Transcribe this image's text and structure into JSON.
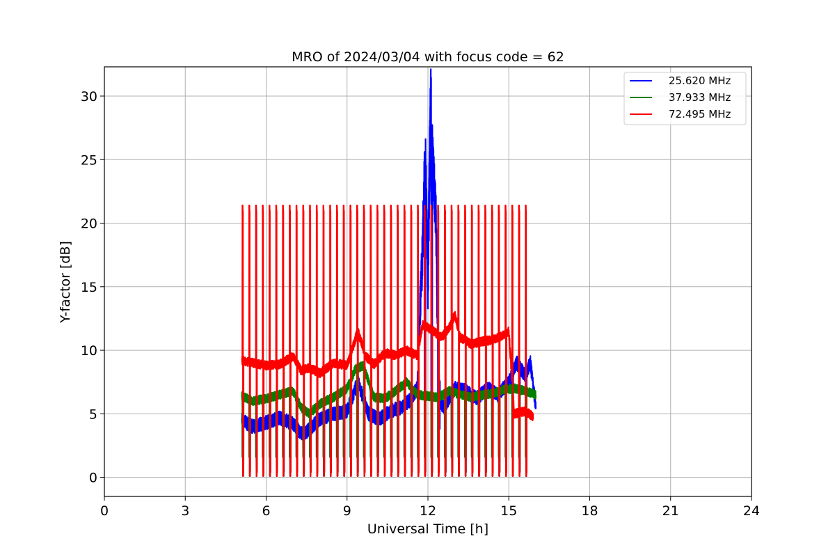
{
  "chart_data": {
    "type": "line",
    "title": "MRO of 2024/03/04 with focus code = 62",
    "xlabel": "Universal Time [h]",
    "ylabel": "Y-factor [dB]",
    "xlim": [
      0,
      24
    ],
    "ylim": [
      -1.5,
      32.3
    ],
    "xticks": [
      0,
      3,
      6,
      9,
      12,
      15,
      18,
      21,
      24
    ],
    "yticks": [
      0,
      5,
      10,
      15,
      20,
      25,
      30
    ],
    "grid": true,
    "legend_position": "top-right",
    "calibration": {
      "first_hour": 5.12,
      "interval_h": 0.25,
      "count": 43,
      "note": "periodic calibration spikes"
    },
    "series": [
      {
        "name": "25.620 MHz",
        "color": "#0000ff",
        "x": [
          5.1,
          5.5,
          6.0,
          6.5,
          7.0,
          7.3,
          7.5,
          8.0,
          8.5,
          9.0,
          9.4,
          9.8,
          10.2,
          10.6,
          11.0,
          11.3,
          11.6,
          11.8,
          11.9,
          12.0,
          12.1,
          12.2,
          12.3,
          12.4,
          12.6,
          13.0,
          13.4,
          13.8,
          14.2,
          14.6,
          15.0,
          15.3,
          15.6,
          15.8,
          16.0
        ],
        "y": [
          4.5,
          4.0,
          4.3,
          4.7,
          4.2,
          3.5,
          3.6,
          4.6,
          5.0,
          5.2,
          7.5,
          5.0,
          4.6,
          5.2,
          5.5,
          6.0,
          7.0,
          18.0,
          26.0,
          15.0,
          30.5,
          24.0,
          20.0,
          6.0,
          5.5,
          7.0,
          6.8,
          6.2,
          7.0,
          6.5,
          7.5,
          9.0,
          8.0,
          9.0,
          5.5
        ]
      },
      {
        "name": "37.933 MHz",
        "color": "#008000",
        "x": [
          5.1,
          5.5,
          6.0,
          6.5,
          7.0,
          7.3,
          7.6,
          8.0,
          8.5,
          9.0,
          9.3,
          9.6,
          10.0,
          10.4,
          10.8,
          11.2,
          11.6,
          12.0,
          12.4,
          12.8,
          13.2,
          13.6,
          14.0,
          14.4,
          14.8,
          15.2,
          15.6,
          16.0
        ],
        "y": [
          6.4,
          6.0,
          6.2,
          6.5,
          6.8,
          5.5,
          5.0,
          5.8,
          6.3,
          7.0,
          8.5,
          8.8,
          6.3,
          6.2,
          6.8,
          7.5,
          6.5,
          6.4,
          6.3,
          6.8,
          6.5,
          6.3,
          6.5,
          6.6,
          6.9,
          7.0,
          6.8,
          6.5
        ]
      },
      {
        "name": "72.495 MHz",
        "color": "#ff0000",
        "x": [
          5.1,
          5.5,
          6.0,
          6.5,
          7.0,
          7.3,
          7.6,
          8.0,
          8.5,
          9.0,
          9.4,
          9.7,
          10.0,
          10.4,
          10.8,
          11.2,
          11.6,
          11.8,
          12.0,
          12.2,
          12.5,
          12.8,
          13.0,
          13.2,
          13.6,
          14.0,
          14.4,
          14.8,
          15.0,
          15.2,
          15.6,
          15.9
        ],
        "y": [
          9.2,
          9.0,
          8.8,
          8.9,
          9.5,
          8.4,
          8.6,
          8.2,
          9.0,
          8.8,
          11.5,
          9.5,
          8.9,
          9.8,
          9.6,
          10.0,
          9.6,
          12.0,
          11.8,
          11.5,
          11.0,
          11.8,
          12.8,
          11.0,
          10.5,
          10.7,
          10.8,
          11.2,
          11.5,
          5.0,
          5.2,
          4.8
        ]
      }
    ],
    "calibration_peaks": {
      "25.620 MHz": 1.6,
      "37.933 MHz": 1.6,
      "72.495 MHz": 21.4
    },
    "calibration_floor": 0.1
  },
  "legend": {
    "items": [
      {
        "label": "25.620 MHz",
        "color": "#0000ff"
      },
      {
        "label": "37.933 MHz",
        "color": "#008000"
      },
      {
        "label": "72.495 MHz",
        "color": "#ff0000"
      }
    ]
  }
}
